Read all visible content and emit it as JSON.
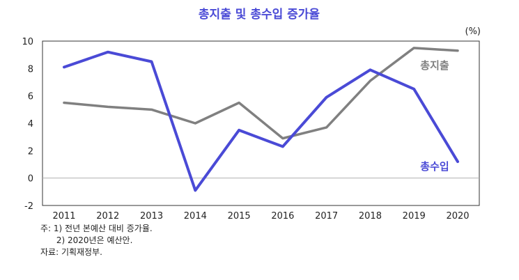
{
  "chart_data": {
    "type": "line",
    "title": "총지출 및 총수입 증가율",
    "unit_label": "(%)",
    "x": [
      "2011",
      "2012",
      "2013",
      "2014",
      "2015",
      "2016",
      "2017",
      "2018",
      "2019",
      "2020"
    ],
    "ylim": [
      -2,
      10
    ],
    "yticks": [
      10,
      8,
      6,
      4,
      2,
      0,
      -2
    ],
    "grid": false,
    "series": [
      {
        "name": "총지출",
        "color": "#808080",
        "values": [
          5.5,
          5.2,
          5.0,
          4.0,
          5.5,
          2.9,
          3.7,
          7.1,
          9.5,
          9.3
        ]
      },
      {
        "name": "총수입",
        "color": "#4a4ad6",
        "values": [
          8.1,
          9.2,
          8.5,
          -0.9,
          3.5,
          2.3,
          5.9,
          7.9,
          6.5,
          1.2
        ]
      }
    ]
  },
  "notes": {
    "line1": "주: 1) 전년 본예산 대비 증가율.",
    "line2": "      2) 2020년은 예산안.",
    "line3": "자료: 기획재정부."
  }
}
